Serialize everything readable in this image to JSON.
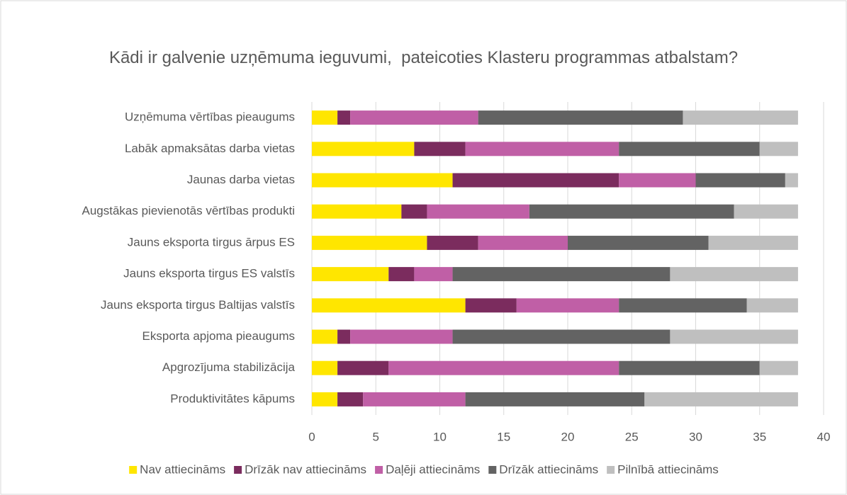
{
  "chart_data": {
    "type": "stacked_bar_horizontal",
    "title": "Kādi ir galvenie uzņēmuma ieguvumi,  pateicoties Klasteru programmas atbalstam?",
    "categories": [
      "Uzņēmuma vērtības pieaugums",
      "Labāk apmaksātas darba vietas",
      "Jaunas darba vietas",
      "Augstākas pievienotās vērtības produkti",
      "Jauns eksporta tirgus ārpus ES",
      "Jauns eksporta tirgus ES valstīs",
      "Jauns eksporta tirgus Baltijas valstīs",
      "Eksporta apjoma pieaugums",
      "Apgrozījuma stabilizācija",
      "Produktivitātes kāpums"
    ],
    "series": [
      {
        "name": "Nav attiecināms",
        "color": "#ffe600",
        "values": [
          2,
          8,
          11,
          7,
          9,
          6,
          12,
          2,
          2,
          2
        ]
      },
      {
        "name": "Drīzāk nav attiecināms",
        "color": "#7b2c5e",
        "values": [
          1,
          4,
          13,
          2,
          4,
          2,
          4,
          1,
          4,
          2
        ]
      },
      {
        "name": "Daļēji attiecināms",
        "color": "#c05fa6",
        "values": [
          10,
          12,
          6,
          8,
          7,
          3,
          8,
          8,
          18,
          8
        ]
      },
      {
        "name": "Drīzāk attiecināms",
        "color": "#636363",
        "values": [
          16,
          11,
          7,
          16,
          11,
          17,
          10,
          17,
          11,
          14
        ]
      },
      {
        "name": "Pilnībā attiecināms",
        "color": "#bfbfbf",
        "values": [
          9,
          3,
          1,
          5,
          7,
          10,
          4,
          10,
          3,
          12
        ]
      }
    ],
    "xlim": [
      0,
      40
    ],
    "xticks": [
      0,
      5,
      10,
      15,
      20,
      25,
      30,
      35,
      40
    ],
    "legend": "bottom"
  }
}
